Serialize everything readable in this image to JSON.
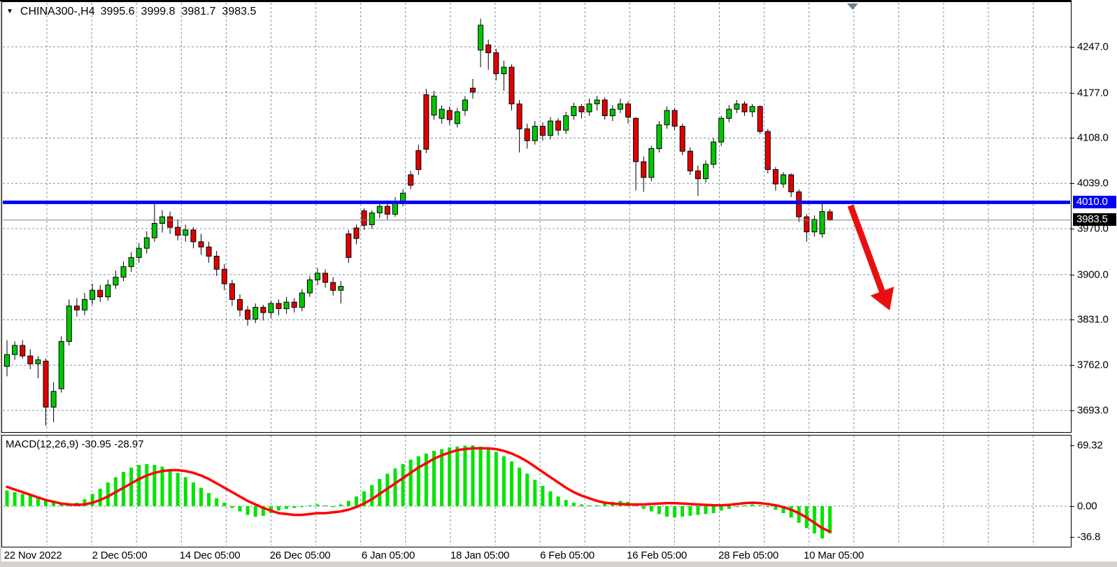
{
  "window": {
    "background": "#d6d3ce",
    "plot_background": "#ffffff",
    "grid_color": "#7f93a3",
    "border_color": "#000000"
  },
  "header": {
    "marker_icon": "▼",
    "symbol": "CHINA300-,H4",
    "open": "3995.6",
    "high": "3999.8",
    "low": "3981.7",
    "close": "3983.5"
  },
  "price_axis": {
    "ticks": [
      "4247.0",
      "4177.0",
      "4108.0",
      "4039.0",
      "3970.0",
      "3900.0",
      "3831.0",
      "3762.0",
      "3693.0"
    ],
    "line_badge": {
      "text": "4010.0",
      "bg": "#0202f8",
      "fg": "#ffffff"
    },
    "price_badge": {
      "text": "3983.5",
      "bg": "#000000",
      "fg": "#ffffff"
    }
  },
  "time_axis": {
    "labels": [
      "22 Nov 2022",
      "2 Dec 05:00",
      "14 Dec 05:00",
      "26 Dec 05:00",
      "6 Jan 05:00",
      "18 Jan 05:00",
      "6 Feb 05:00",
      "16 Feb 05:00",
      "28 Feb 05:00",
      "10 Mar 05:00"
    ]
  },
  "macd_panel": {
    "label": "MACD(12,26,9) -30.95 -28.97",
    "ticks": [
      "69.32",
      "0.00",
      "-36.8"
    ]
  },
  "chart_data": [
    {
      "type": "candlestick",
      "title": "CHINA300-,H4",
      "symbol": "CHINA300-",
      "timeframe": "H4",
      "last_quote": {
        "open": 3995.6,
        "high": 3999.8,
        "low": 3981.7,
        "close": 3983.5
      },
      "y_ticks": [
        4247.0,
        4177.0,
        4108.0,
        4039.0,
        3970.0,
        3900.0,
        3831.0,
        3762.0,
        3693.0
      ],
      "x_labels": [
        "22 Nov 2022",
        "2 Dec 05:00",
        "14 Dec 05:00",
        "26 Dec 05:00",
        "6 Jan 05:00",
        "18 Jan 05:00",
        "6 Feb 05:00",
        "16 Feb 05:00",
        "28 Feb 05:00",
        "10 Mar 05:00"
      ],
      "colors": {
        "up": "#00c800",
        "down": "#e00000",
        "wick": "#000000",
        "hline": "#0202f8",
        "current_price_line": "#808080",
        "arrow": "#ea0f0f",
        "shift_marker": "#6f8396"
      },
      "hline_value": 4010.0,
      "current_price": 3983.5,
      "annotations": [
        {
          "type": "horizontal-line",
          "value": 4010.0,
          "color": "#0202f8"
        },
        {
          "type": "trend-arrow-down",
          "color": "#ea0f0f"
        }
      ],
      "candles": [
        [
          3760,
          3800,
          3745,
          3778
        ],
        [
          3778,
          3798,
          3770,
          3792
        ],
        [
          3792,
          3800,
          3772,
          3776
        ],
        [
          3776,
          3786,
          3756,
          3764
        ],
        [
          3764,
          3776,
          3742,
          3770
        ],
        [
          3768,
          3772,
          3670,
          3698
        ],
        [
          3698,
          3736,
          3675,
          3722
        ],
        [
          3726,
          3806,
          3720,
          3798
        ],
        [
          3798,
          3862,
          3792,
          3852
        ],
        [
          3852,
          3864,
          3836,
          3846
        ],
        [
          3846,
          3872,
          3838,
          3862
        ],
        [
          3862,
          3886,
          3854,
          3876
        ],
        [
          3876,
          3884,
          3858,
          3866
        ],
        [
          3866,
          3892,
          3860,
          3884
        ],
        [
          3884,
          3906,
          3878,
          3896
        ],
        [
          3896,
          3920,
          3890,
          3912
        ],
        [
          3912,
          3934,
          3904,
          3926
        ],
        [
          3926,
          3948,
          3918,
          3940
        ],
        [
          3940,
          3966,
          3932,
          3956
        ],
        [
          3956,
          4008,
          3950,
          3978
        ],
        [
          3978,
          3998,
          3964,
          3988
        ],
        [
          3988,
          3996,
          3962,
          3972
        ],
        [
          3972,
          3984,
          3952,
          3960
        ],
        [
          3960,
          3976,
          3950,
          3968
        ],
        [
          3968,
          3972,
          3940,
          3950
        ],
        [
          3950,
          3962,
          3930,
          3942
        ],
        [
          3942,
          3950,
          3918,
          3928
        ],
        [
          3928,
          3936,
          3898,
          3908
        ],
        [
          3908,
          3916,
          3876,
          3886
        ],
        [
          3886,
          3892,
          3852,
          3862
        ],
        [
          3862,
          3870,
          3836,
          3846
        ],
        [
          3846,
          3852,
          3822,
          3832
        ],
        [
          3832,
          3856,
          3826,
          3850
        ],
        [
          3850,
          3854,
          3830,
          3842
        ],
        [
          3842,
          3860,
          3834,
          3856
        ],
        [
          3856,
          3862,
          3838,
          3848
        ],
        [
          3848,
          3866,
          3840,
          3858
        ],
        [
          3858,
          3864,
          3842,
          3850
        ],
        [
          3850,
          3878,
          3844,
          3872
        ],
        [
          3872,
          3898,
          3866,
          3892
        ],
        [
          3892,
          3910,
          3884,
          3902
        ],
        [
          3902,
          3908,
          3880,
          3888
        ],
        [
          3888,
          3896,
          3868,
          3876
        ],
        [
          3876,
          3890,
          3856,
          3882
        ],
        [
          3962,
          3968,
          3918,
          3926
        ],
        [
          3971,
          3976,
          3946,
          3955
        ],
        [
          3997,
          4001,
          3968,
          3975
        ],
        [
          3976,
          3998,
          3970,
          3994
        ],
        [
          3994,
          4010,
          3986,
          4004
        ],
        [
          4004,
          4012,
          3984,
          3992
        ],
        [
          3992,
          4018,
          3988,
          4012
        ],
        [
          4012,
          4030,
          4004,
          4024
        ],
        [
          4052,
          4058,
          4030,
          4036
        ],
        [
          4089,
          4098,
          4052,
          4060
        ],
        [
          4174,
          4183,
          4085,
          4091
        ],
        [
          4143,
          4180,
          4136,
          4172
        ],
        [
          4138,
          4158,
          4130,
          4152
        ],
        [
          4150,
          4156,
          4128,
          4136
        ],
        [
          4130,
          4154,
          4124,
          4148
        ],
        [
          4150,
          4172,
          4142,
          4166
        ],
        [
          4184,
          4198,
          4168,
          4178
        ],
        [
          4242,
          4290,
          4216,
          4280
        ],
        [
          4250,
          4258,
          4212,
          4238
        ],
        [
          4238,
          4244,
          4196,
          4206
        ],
        [
          4206,
          4226,
          4180,
          4216
        ],
        [
          4216,
          4220,
          4150,
          4160
        ],
        [
          4160,
          4166,
          4086,
          4122
        ],
        [
          4122,
          4130,
          4092,
          4104
        ],
        [
          4104,
          4134,
          4098,
          4126
        ],
        [
          4126,
          4132,
          4104,
          4112
        ],
        [
          4112,
          4140,
          4106,
          4134
        ],
        [
          4134,
          4138,
          4112,
          4120
        ],
        [
          4120,
          4148,
          4114,
          4142
        ],
        [
          4142,
          4162,
          4136,
          4156
        ],
        [
          4156,
          4160,
          4138,
          4148
        ],
        [
          4148,
          4168,
          4142,
          4160
        ],
        [
          4160,
          4172,
          4150,
          4166
        ],
        [
          4166,
          4170,
          4136,
          4142
        ],
        [
          4142,
          4158,
          4134,
          4152
        ],
        [
          4152,
          4168,
          4146,
          4160
        ],
        [
          4160,
          4164,
          4130,
          4140
        ],
        [
          4138,
          4140,
          4028,
          4072
        ],
        [
          4072,
          4080,
          4026,
          4048
        ],
        [
          4048,
          4096,
          4042,
          4092
        ],
        [
          4092,
          4134,
          4086,
          4128
        ],
        [
          4128,
          4156,
          4122,
          4150
        ],
        [
          4150,
          4154,
          4120,
          4126
        ],
        [
          4126,
          4130,
          4082,
          4088
        ],
        [
          4088,
          4094,
          4052,
          4058
        ],
        [
          4058,
          4066,
          4020,
          4046
        ],
        [
          4046,
          4074,
          4040,
          4068
        ],
        [
          4068,
          4108,
          4062,
          4102
        ],
        [
          4102,
          4142,
          4096,
          4138
        ],
        [
          4138,
          4158,
          4132,
          4152
        ],
        [
          4152,
          4166,
          4146,
          4160
        ],
        [
          4160,
          4164,
          4142,
          4148
        ],
        [
          4148,
          4160,
          4140,
          4156
        ],
        [
          4156,
          4158,
          4114,
          4118
        ],
        [
          4118,
          4122,
          4054,
          4060
        ],
        [
          4060,
          4064,
          4028,
          4038
        ],
        [
          4038,
          4056,
          4032,
          4052
        ],
        [
          4052,
          4054,
          4018,
          4026
        ],
        [
          4026,
          4030,
          3980,
          3988
        ],
        [
          3988,
          3992,
          3950,
          3965
        ],
        [
          3965,
          3990,
          3958,
          3984
        ],
        [
          3962,
          4012,
          3956,
          3996
        ],
        [
          3995.6,
          3999.8,
          3981.7,
          3983.5
        ]
      ]
    },
    {
      "type": "macd",
      "indicator": "MACD(12,26,9)",
      "macd_value": -30.95,
      "signal_value": -28.97,
      "ylim": [
        -36.8,
        69.32
      ],
      "y_ticks": [
        69.32,
        0.0,
        -36.8
      ],
      "colors": {
        "histogram": "#00e400",
        "signal": "#ff0000"
      },
      "histogram": [
        18,
        16,
        14,
        12,
        10,
        8,
        6,
        4,
        2,
        4,
        8,
        14,
        20,
        27,
        33,
        39,
        44,
        47,
        48,
        47,
        45,
        42,
        38,
        33,
        27,
        21,
        15,
        9,
        4,
        -2,
        -6,
        -10,
        -12,
        -11,
        -8,
        -5,
        -3,
        -2,
        -1,
        1,
        2,
        1,
        -1,
        2,
        6,
        11,
        17,
        24,
        31,
        37,
        43,
        48,
        53,
        57,
        60,
        63,
        65,
        67,
        68,
        69,
        69.32,
        68,
        66,
        62,
        57,
        51,
        44,
        37,
        30,
        23,
        17,
        11,
        7,
        4,
        2,
        1,
        1,
        3,
        5,
        6,
        5,
        3,
        -3,
        -6,
        -9,
        -12,
        -13,
        -12,
        -11,
        -10,
        -9,
        -8,
        -5,
        -3,
        -1,
        1,
        2,
        1,
        -1,
        -4,
        -8,
        -13,
        -19,
        -25,
        -31,
        -36.8,
        -30.95
      ],
      "signal": [
        22,
        19,
        16,
        13,
        10,
        7,
        5,
        3,
        2,
        1.5,
        2,
        4,
        7,
        11,
        16,
        21,
        26,
        31,
        35,
        38,
        40,
        41,
        41,
        40,
        38,
        35,
        31,
        26,
        21,
        16,
        11,
        6,
        2,
        -2,
        -5,
        -8,
        -9,
        -10,
        -10,
        -9,
        -8,
        -8,
        -7,
        -6,
        -4,
        -1,
        3,
        8,
        14,
        20,
        26,
        32,
        38,
        44,
        49,
        54,
        58,
        61,
        64,
        65,
        66,
        66,
        66,
        65,
        63,
        60,
        56,
        51,
        45,
        39,
        33,
        27,
        21,
        16,
        12,
        9,
        6,
        4,
        3,
        2.5,
        2,
        2,
        2,
        2.5,
        3,
        3.5,
        3.5,
        3,
        2.5,
        2,
        1.5,
        1,
        1,
        1.5,
        2.5,
        3.5,
        4,
        3.5,
        2.5,
        1,
        -1,
        -4,
        -8,
        -13,
        -19,
        -25,
        -28.97
      ]
    }
  ]
}
